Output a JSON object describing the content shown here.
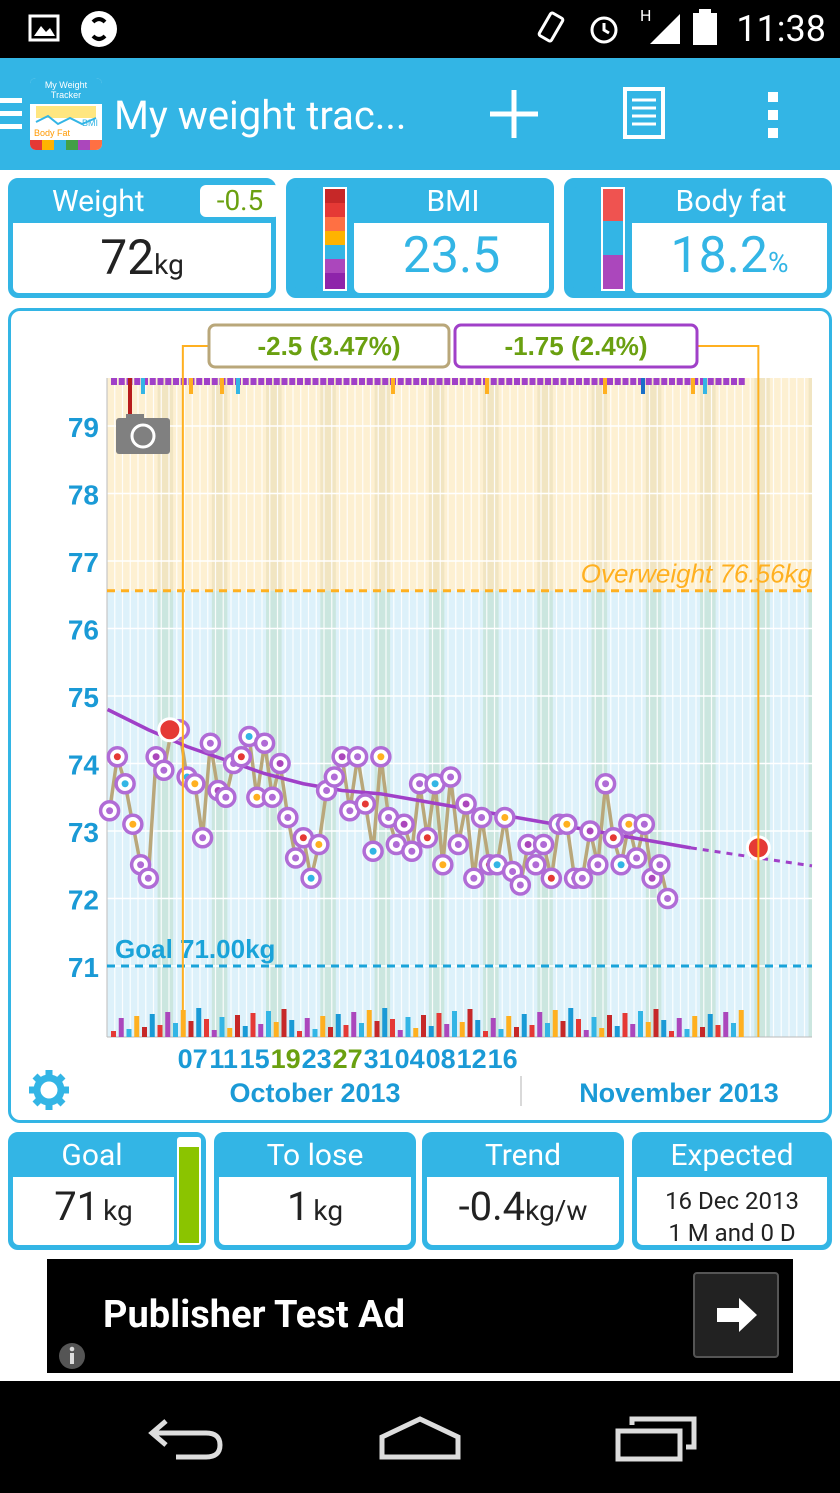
{
  "status_bar": {
    "time": "11:38",
    "network": "H"
  },
  "app_bar": {
    "title": "My weight trac...",
    "logo_text": [
      "My Weight",
      "Tracker",
      "BMI",
      "Body Fat"
    ]
  },
  "cards": {
    "weight": {
      "label": "Weight",
      "delta": "-0.5",
      "value": "72",
      "unit": "kg"
    },
    "bmi": {
      "label": "BMI",
      "value": "23.5"
    },
    "bodyfat": {
      "label": "Body fat",
      "value": "18.2",
      "unit": "%"
    }
  },
  "chart_data": {
    "type": "line",
    "ylim": [
      70,
      80
    ],
    "yticks": [
      "71",
      "72",
      "73",
      "74",
      "75",
      "76",
      "77",
      "78",
      "79"
    ],
    "xticks": [
      "07",
      "11",
      "15",
      "19",
      "23",
      "27",
      "31",
      "04",
      "08",
      "12",
      "16"
    ],
    "months": [
      "October 2013",
      "November 2013"
    ],
    "range_labels": [
      "-2.5 (3.47%)",
      "-1.75 (2.4%)"
    ],
    "overweight_label": "Overweight 76.56kg",
    "overweight_value": 76.56,
    "goal_label": "Goal 71.00kg",
    "goal_value": 71.0,
    "start_day": 3,
    "series": [
      {
        "name": "weight",
        "values": [
          73.3,
          74.1,
          73.7,
          73.1,
          72.5,
          72.3,
          74.1,
          73.9,
          74.5,
          74.5,
          73.8,
          73.7,
          72.9,
          74.3,
          73.6,
          73.5,
          74.0,
          74.1,
          74.4,
          73.5,
          74.3,
          73.5,
          74.0,
          73.2,
          72.6,
          72.9,
          72.3,
          72.8,
          73.6,
          73.8,
          74.1,
          73.3,
          74.1,
          73.4,
          72.7,
          74.1,
          73.2,
          72.8,
          73.1,
          72.7,
          73.7,
          72.9,
          73.7,
          72.5,
          73.8,
          72.8,
          73.4,
          72.3,
          73.2,
          72.5,
          72.5,
          73.2,
          72.4,
          72.2,
          72.8,
          72.5,
          72.8,
          72.3,
          73.1,
          73.1,
          72.3,
          72.3,
          73.0,
          72.5,
          73.7,
          72.9,
          72.5,
          73.1,
          72.6,
          73.1,
          72.3,
          72.5,
          72.0
        ]
      },
      {
        "name": "trend",
        "values": [
          74.8,
          74.5,
          74.25,
          74.05,
          73.85,
          73.7,
          73.6,
          73.55,
          73.45,
          73.35,
          73.25,
          73.15,
          73.05,
          72.95,
          72.85,
          72.75
        ]
      }
    ],
    "trend_days": [
      3,
      8,
      13,
      18,
      23,
      28,
      33,
      38,
      43,
      48,
      53,
      58,
      63,
      68,
      73,
      78
    ]
  },
  "summary": {
    "goal": {
      "label": "Goal",
      "value": "71",
      "unit": "kg"
    },
    "to_lose": {
      "label": "To lose",
      "value": "1",
      "unit": "kg"
    },
    "trend": {
      "label": "Trend",
      "value": "-0.4",
      "unit": "kg/w"
    },
    "expected": {
      "label": "Expected",
      "line1": "16 Dec 2013",
      "line2": "1 M and 0 D"
    }
  },
  "ad": {
    "text": "Publisher Test Ad"
  },
  "colors": {
    "accent": "#33b5e5",
    "purple": "#a040c8",
    "overweight": "#ffb020",
    "goal": "#1aa3d9",
    "weight_line": "#b9a77a"
  }
}
